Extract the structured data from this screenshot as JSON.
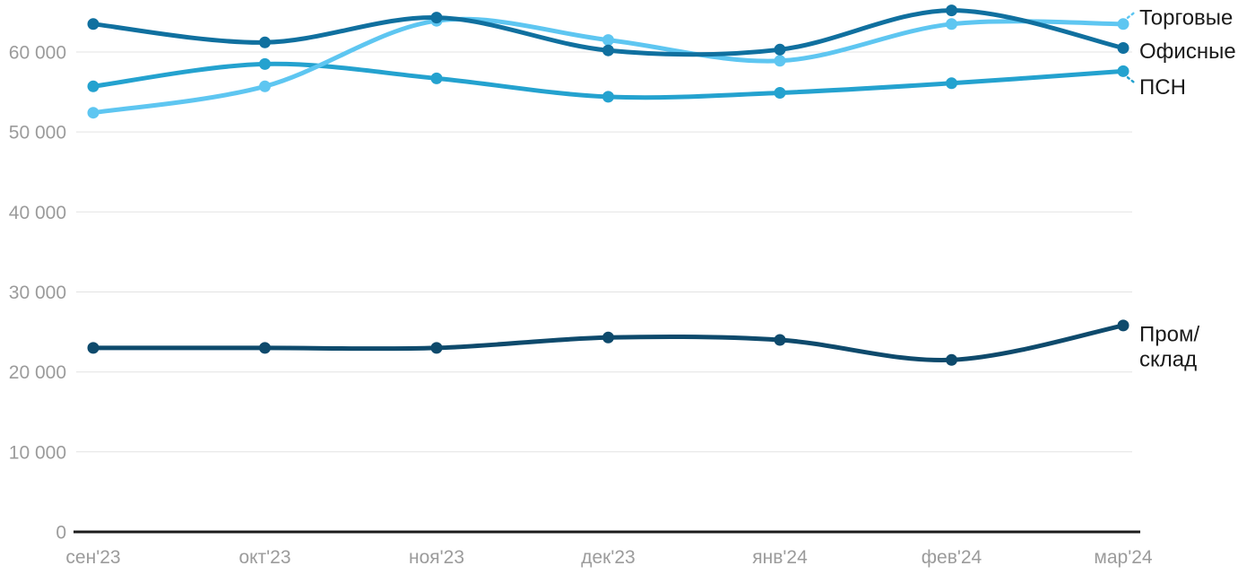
{
  "chart_data": {
    "type": "line",
    "title": "",
    "xlabel": "",
    "ylabel": "",
    "x_labels": [
      "сен'23",
      "окт'23",
      "ноя'23",
      "дек'23",
      "янв'24",
      "фев'24",
      "мар'24"
    ],
    "y_ticks": [
      {
        "value": 0,
        "label": "0"
      },
      {
        "value": 10000,
        "label": "10 000"
      },
      {
        "value": 20000,
        "label": "20 000"
      },
      {
        "value": 30000,
        "label": "30 000"
      },
      {
        "value": 40000,
        "label": "40 000"
      },
      {
        "value": 50000,
        "label": "50 000"
      },
      {
        "value": 60000,
        "label": "60 000"
      }
    ],
    "ylim": [
      0,
      66500
    ],
    "grid": true,
    "legend_position": "right",
    "series": [
      {
        "name": "ПСН",
        "color": "#24a2cf",
        "values": [
          55700,
          58500,
          56700,
          54400,
          54900,
          56100,
          57600
        ],
        "label_lines": [
          "ПСН"
        ],
        "leader": "down"
      },
      {
        "name": "Торговые",
        "color": "#5ec6f1",
        "values": [
          52400,
          55700,
          63900,
          61500,
          58900,
          63500,
          63500
        ],
        "label_lines": [
          "Торговые"
        ],
        "leader": "up"
      },
      {
        "name": "Офисные",
        "color": "#10709f",
        "values": [
          63500,
          61200,
          64300,
          60200,
          60300,
          65200,
          60500
        ],
        "label_lines": [
          "Офисные"
        ],
        "leader": "none"
      },
      {
        "name": "Пром/склад",
        "color": "#0e4a6c",
        "values": [
          23000,
          23000,
          23000,
          24300,
          24000,
          21500,
          25800
        ],
        "label_lines": [
          "Пром/",
          "склад"
        ],
        "leader": "none"
      }
    ]
  },
  "style": {
    "tick_label_color": "#9b9b9b",
    "grid_color": "#e3e3e3",
    "axis_color": "#1c1c1c",
    "series_label_color": "#1a1a1a",
    "background": "#ffffff"
  }
}
